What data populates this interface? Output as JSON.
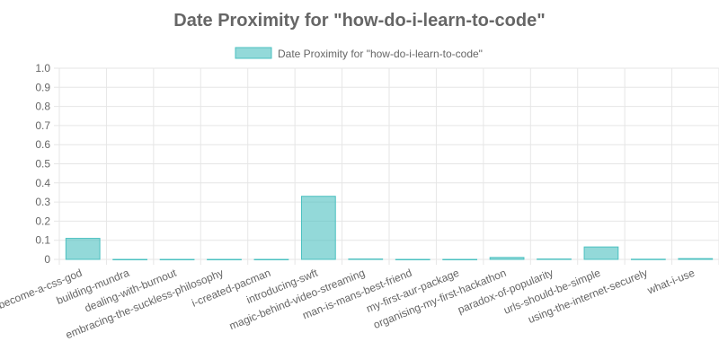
{
  "chart_data": {
    "type": "bar",
    "title": "Date Proximity for \"how-do-i-learn-to-code\"",
    "categories": [
      "become-a-css-god",
      "building-mundra",
      "dealing-with-burnout",
      "embracing-the-suckless-philosophy",
      "i-created-pacman",
      "introducing-swft",
      "magic-behind-video-streaming",
      "man-is-mans-best-friend",
      "my-first-aur-package",
      "organising-my-first-hackathon",
      "paradox-of-popularity",
      "urls-should-be-simple",
      "using-the-internet-securely",
      "what-i-use"
    ],
    "series": [
      {
        "name": "Date Proximity for \"how-do-i-learn-to-code\"",
        "values": [
          0.11,
          0,
          0,
          0,
          0,
          0.33,
          0.002,
          0,
          0,
          0.01,
          0.002,
          0.065,
          0.001,
          0.004
        ]
      }
    ],
    "yticks": [
      "0",
      "0.1",
      "0.2",
      "0.3",
      "0.4",
      "0.5",
      "0.6",
      "0.7",
      "0.8",
      "0.9",
      "1.0"
    ],
    "ylim": [
      0,
      1.0
    ],
    "grid": true,
    "legend": "top-center",
    "colors": {
      "bar_fill": "rgba(75, 192, 192, 0.6)",
      "bar_stroke": "#4bc0c0",
      "grid": "#e6e6e6",
      "text": "#666666"
    }
  }
}
